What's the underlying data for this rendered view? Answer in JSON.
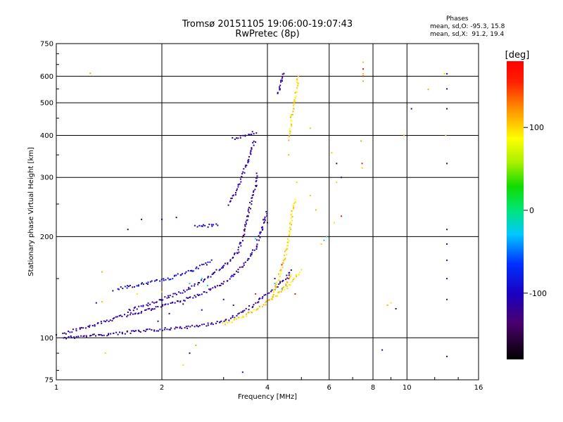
{
  "header": {
    "title_line1": "Tromsø 20151105 19:06:00-19:07:43",
    "title_line2": "RwPretec (8p)",
    "stats_heading": "Phases",
    "stats_o": "mean, sd,O: -95.3, 15.8",
    "stats_x": "mean, sd,X:  91.2, 19.4"
  },
  "chart_data": {
    "type": "scatter",
    "xlabel": "Frequency [MHz]",
    "ylabel": "Stationary phase Virtual Height [km]",
    "x_scale": "log",
    "y_scale": "log",
    "xlim": [
      1,
      16
    ],
    "ylim": [
      75,
      750
    ],
    "x_ticks": [
      1,
      2,
      4,
      6,
      8,
      10,
      16
    ],
    "x_ticklabels": [
      "1",
      "2",
      "4",
      "6",
      "8",
      "10",
      "16"
    ],
    "y_ticks": [
      75,
      100,
      200,
      300,
      400,
      500,
      600,
      750
    ],
    "y_ticklabels": [
      "75",
      "100",
      "200",
      "300",
      "400",
      "500",
      "600",
      "750"
    ],
    "grid": true,
    "colorbar": {
      "label": "[deg]",
      "range": [
        -180,
        180
      ],
      "ticks": [
        100,
        0,
        -100
      ],
      "ticklabels": [
        "100",
        "0",
        "-100"
      ]
    },
    "series": [
      {
        "traces": [
          {
            "points": [
              [
                1.05,
                100
              ],
              [
                1.2,
                101
              ],
              [
                1.5,
                103
              ],
              [
                2.0,
                106
              ],
              [
                2.5,
                108
              ],
              [
                3.0,
                112
              ],
              [
                3.3,
                117
              ],
              [
                3.6,
                124
              ],
              [
                3.9,
                132
              ],
              [
                4.2,
                140
              ],
              [
                4.5,
                150
              ],
              [
                4.7,
                160
              ]
            ],
            "phase": -115
          },
          {
            "points": [
              [
                1.05,
                103
              ],
              [
                1.2,
                107
              ],
              [
                1.5,
                115
              ],
              [
                2.0,
                124
              ],
              [
                2.5,
                133
              ],
              [
                3.0,
                145
              ],
              [
                3.3,
                158
              ],
              [
                3.5,
                170
              ],
              [
                3.7,
                185
              ],
              [
                3.8,
                200
              ],
              [
                3.9,
                220
              ],
              [
                4.0,
                240
              ]
            ],
            "phase": -115
          },
          {
            "points": [
              [
                1.6,
                120
              ],
              [
                2.0,
                130
              ],
              [
                2.4,
                140
              ],
              [
                2.8,
                155
              ],
              [
                3.1,
                168
              ],
              [
                3.3,
                180
              ]
            ],
            "phase": -112
          },
          {
            "points": [
              [
                3.3,
                178
              ],
              [
                3.4,
                200
              ],
              [
                3.5,
                225
              ],
              [
                3.6,
                255
              ],
              [
                3.7,
                280
              ],
              [
                3.75,
                310
              ]
            ],
            "phase": -118
          },
          {
            "points": [
              [
                3.1,
                250
              ],
              [
                3.3,
                280
              ],
              [
                3.5,
                330
              ],
              [
                3.6,
                360
              ],
              [
                3.7,
                390
              ]
            ],
            "phase": -115
          },
          {
            "points": [
              [
                3.2,
                390
              ],
              [
                3.4,
                400
              ],
              [
                3.6,
                405
              ],
              [
                3.75,
                410
              ]
            ],
            "phase": -118
          },
          {
            "points": [
              [
                4.3,
                530
              ],
              [
                4.35,
                560
              ],
              [
                4.4,
                590
              ],
              [
                4.45,
                620
              ]
            ],
            "phase": -115
          },
          {
            "points": [
              [
                2.5,
                215
              ],
              [
                2.7,
                215
              ],
              [
                2.9,
                218
              ]
            ],
            "phase": -100
          },
          {
            "points": [
              [
                1.5,
                140
              ],
              [
                1.8,
                145
              ],
              [
                2.1,
                150
              ],
              [
                2.5,
                160
              ],
              [
                2.8,
                170
              ]
            ],
            "phase": -95
          }
        ],
        "scatter": [
          [
            1.0,
            102
          ],
          [
            1.1,
            101
          ],
          [
            1.3,
            127
          ],
          [
            1.45,
            138
          ],
          [
            1.6,
            210
          ],
          [
            1.75,
            225
          ],
          [
            2.0,
            225
          ],
          [
            2.2,
            228
          ],
          [
            1.95,
            112
          ],
          [
            2.1,
            118
          ],
          [
            2.3,
            126
          ],
          [
            2.6,
            121
          ],
          [
            3.0,
            130
          ],
          [
            3.2,
            125
          ],
          [
            3.4,
            79
          ],
          [
            3.8,
            131
          ],
          [
            4.0,
            220
          ],
          [
            4.2,
            150
          ],
          [
            6.3,
            330
          ],
          [
            6.5,
            300
          ],
          [
            13.0,
            480
          ],
          [
            13.0,
            550
          ],
          [
            13.0,
            610
          ],
          [
            13.0,
            330
          ],
          [
            13.0,
            210
          ],
          [
            13.0,
            190
          ],
          [
            13.0,
            170
          ],
          [
            13.0,
            150
          ],
          [
            13.0,
            130
          ],
          [
            13.0,
            88
          ],
          [
            10.3,
            480
          ],
          [
            9.3,
            122
          ],
          [
            8.5,
            92
          ],
          [
            2.4,
            90
          ]
        ],
        "phase": -110
      },
      {
        "traces": [
          {
            "points": [
              [
                3.0,
                110
              ],
              [
                3.3,
                114
              ],
              [
                3.6,
                119
              ],
              [
                3.9,
                125
              ],
              [
                4.2,
                133
              ],
              [
                4.5,
                143
              ],
              [
                4.7,
                155
              ]
            ],
            "phase": 105
          },
          {
            "points": [
              [
                4.1,
                130
              ],
              [
                4.3,
                150
              ],
              [
                4.5,
                175
              ],
              [
                4.6,
                200
              ],
              [
                4.7,
                235
              ],
              [
                4.8,
                260
              ]
            ],
            "phase": 100
          },
          {
            "points": [
              [
                4.5,
                140
              ],
              [
                4.8,
                150
              ],
              [
                5.0,
                160
              ]
            ],
            "phase": 95
          },
          {
            "points": [
              [
                4.6,
                390
              ],
              [
                4.7,
                460
              ],
              [
                4.8,
                520
              ],
              [
                4.9,
                600
              ]
            ],
            "phase": 100
          }
        ],
        "scatter": [
          [
            1.25,
            612
          ],
          [
            1.35,
            157
          ],
          [
            1.38,
            90
          ],
          [
            1.35,
            128
          ],
          [
            1.7,
            135
          ],
          [
            2.0,
            137
          ],
          [
            2.5,
            95
          ],
          [
            2.3,
            83
          ],
          [
            4.6,
            350
          ],
          [
            4.85,
            290
          ],
          [
            5.3,
            265
          ],
          [
            5.5,
            240
          ],
          [
            5.7,
            190
          ],
          [
            6.1,
            355
          ],
          [
            6.3,
            290
          ],
          [
            7.5,
            660
          ],
          [
            7.5,
            610
          ],
          [
            7.5,
            580
          ],
          [
            7.4,
            385
          ],
          [
            7.45,
            320
          ],
          [
            8.8,
            125
          ],
          [
            9.0,
            127
          ],
          [
            11.5,
            548
          ],
          [
            12.8,
            610
          ],
          [
            12.9,
            400
          ],
          [
            9.8,
            400
          ],
          [
            6.2,
            220
          ],
          [
            5.3,
            420
          ]
        ],
        "phase": 105
      },
      {
        "traces": [],
        "scatter": [
          [
            2.6,
            150
          ],
          [
            2.7,
            143
          ],
          [
            2.4,
            145
          ],
          [
            5.8,
            195
          ],
          [
            5.9,
            200
          ],
          [
            3.7,
            197
          ],
          [
            4.2,
            145
          ],
          [
            4.4,
            140
          ]
        ],
        "phase": -20
      },
      {
        "traces": [],
        "scatter": [
          [
            7.5,
            630
          ],
          [
            7.5,
            600
          ],
          [
            7.45,
            330
          ],
          [
            6.5,
            230
          ],
          [
            4.6,
            150
          ],
          [
            4.4,
            165
          ],
          [
            3.7,
            135
          ],
          [
            4.8,
            135
          ]
        ],
        "phase": 170
      }
    ]
  }
}
